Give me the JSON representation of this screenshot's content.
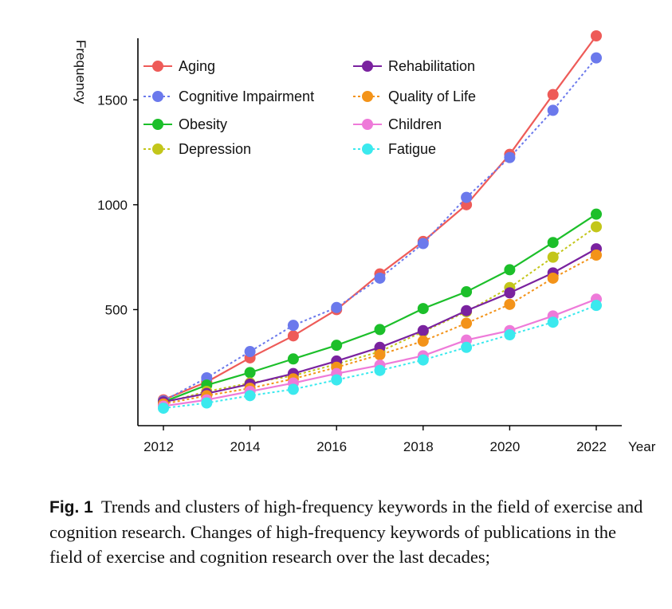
{
  "chart_data": {
    "type": "line",
    "title": "",
    "xlabel": "Year",
    "ylabel": "Frequency",
    "x": [
      2012,
      2013,
      2014,
      2015,
      2016,
      2017,
      2018,
      2019,
      2020,
      2021,
      2022
    ],
    "xticks": [
      "2012",
      "2014",
      "2016",
      "2018",
      "2020",
      "2022"
    ],
    "yticks": [
      "500",
      "1000",
      "1500"
    ],
    "ylim": [
      0,
      1900
    ],
    "grid": false,
    "legend_position": "top-left, inside plot, two columns",
    "series": [
      {
        "name": "Aging",
        "color": "#ee5b58",
        "dashed": false,
        "values": [
          70,
          155,
          270,
          375,
          500,
          670,
          825,
          1000,
          1240,
          1525,
          1805
        ]
      },
      {
        "name": "Cognitive Impairment",
        "color": "#6b79ec",
        "dashed": true,
        "values": [
          65,
          175,
          300,
          425,
          510,
          650,
          815,
          1035,
          1225,
          1450,
          1700
        ]
      },
      {
        "name": "Obesity",
        "color": "#1cbf2a",
        "dashed": false,
        "values": [
          60,
          140,
          200,
          265,
          330,
          405,
          505,
          585,
          690,
          820,
          955
        ]
      },
      {
        "name": "Depression",
        "color": "#c3c61a",
        "dashed": true,
        "values": [
          55,
          110,
          150,
          185,
          240,
          300,
          395,
          490,
          605,
          750,
          895
        ]
      },
      {
        "name": "Rehabilitation",
        "color": "#7a229f",
        "dashed": false,
        "values": [
          60,
          100,
          145,
          195,
          255,
          320,
          400,
          495,
          580,
          675,
          790
        ]
      },
      {
        "name": "Quality of Life",
        "color": "#f39319",
        "dashed": true,
        "values": [
          50,
          90,
          125,
          170,
          225,
          285,
          350,
          435,
          525,
          650,
          760
        ]
      },
      {
        "name": "Children",
        "color": "#ee7ad9",
        "dashed": false,
        "values": [
          40,
          70,
          110,
          150,
          195,
          235,
          280,
          355,
          400,
          470,
          550
        ]
      },
      {
        "name": "Fatigue",
        "color": "#3be9ee",
        "dashed": true,
        "values": [
          30,
          55,
          90,
          120,
          165,
          210,
          260,
          320,
          380,
          440,
          520
        ]
      }
    ]
  },
  "caption": {
    "label": "Fig. 1",
    "text": "Trends and clusters of high-frequency keywords in the field of exercise and cognition research.    Changes of high-frequency keywords of publications in the field of exercise and cognition research over the last decades;"
  }
}
